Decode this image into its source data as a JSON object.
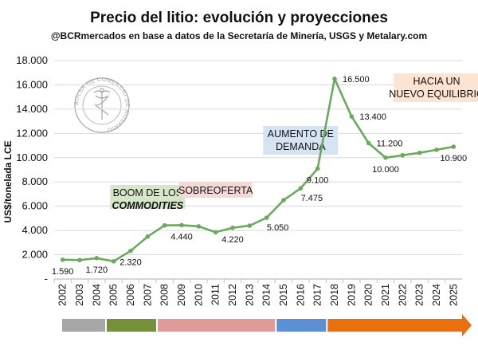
{
  "chart_data": {
    "type": "line",
    "title": "Precio del litio: evolución y proyecciones",
    "subtitle": "@BCRmercados en base a datos de la Secretaría de Minería, USGS y Metalary.com",
    "ylabel": "US$/tonelada LCE",
    "xlabel": "",
    "ylim": [
      0,
      18000
    ],
    "y_ticks": [
      "-",
      "2.000",
      "4.000",
      "6.000",
      "8.000",
      "10.000",
      "12.000",
      "14.000",
      "16.000",
      "18.000"
    ],
    "y_tick_values": [
      0,
      2000,
      4000,
      6000,
      8000,
      10000,
      12000,
      14000,
      16000,
      18000
    ],
    "grid": true,
    "x": [
      "2002",
      "2003",
      "2004",
      "2005",
      "2006",
      "2007",
      "2008",
      "2009",
      "2010",
      "2011",
      "2012",
      "2013",
      "2014",
      "2015",
      "2016",
      "2017",
      "2018",
      "2019",
      "2020",
      "2021",
      "2022",
      "2023",
      "2024",
      "2025"
    ],
    "series": [
      {
        "name": "Precio del litio",
        "color": "#6aaa5c",
        "values": [
          1590,
          1560,
          1720,
          1460,
          2320,
          3500,
          4420,
          4440,
          4340,
          3860,
          4220,
          4400,
          5050,
          6500,
          7475,
          9100,
          16500,
          13400,
          11200,
          10000,
          10200,
          10400,
          10650,
          10900
        ]
      }
    ],
    "data_labels": [
      {
        "index": 0,
        "text": "1.590",
        "pos": "below"
      },
      {
        "index": 2,
        "text": "1.720",
        "pos": "below"
      },
      {
        "index": 4,
        "text": "2.320",
        "pos": "below"
      },
      {
        "index": 7,
        "text": "4.440",
        "pos": "below"
      },
      {
        "index": 10,
        "text": "4.220",
        "pos": "below"
      },
      {
        "index": 12,
        "text": "5.050",
        "pos": "below-right"
      },
      {
        "index": 14,
        "text": "7.475",
        "pos": "below-right"
      },
      {
        "index": 15,
        "text": "9.100",
        "pos": "below"
      },
      {
        "index": 16,
        "text": "16.500",
        "pos": "right"
      },
      {
        "index": 17,
        "text": "13.400",
        "pos": "right"
      },
      {
        "index": 18,
        "text": "11.200",
        "pos": "right"
      },
      {
        "index": 19,
        "text": "10.000",
        "pos": "below"
      },
      {
        "index": 23,
        "text": "10.900",
        "pos": "below"
      }
    ],
    "annotations": [
      {
        "id": "boom",
        "lines": [
          "BOOM DE LOS",
          "COMMODITIES"
        ],
        "bg": "#d6e6c8",
        "anchor_year": "2007"
      },
      {
        "id": "sobreoferta",
        "lines": [
          "SOBREOFERTA"
        ],
        "bg": "#f4d9d6",
        "anchor_year": "2011"
      },
      {
        "id": "aumento",
        "lines": [
          "AUMENTO DE",
          "DEMANDA"
        ],
        "bg": "#d5e3f2",
        "anchor_year": "2016"
      },
      {
        "id": "equilibrio",
        "lines": [
          "HACIA UN",
          "NUEVO EQUILIBRIO"
        ],
        "bg": "#fde3d2",
        "anchor_year": "2024"
      }
    ],
    "period_bar": [
      {
        "from": "2002",
        "to": "2005",
        "color": "#a6a6a6"
      },
      {
        "from": "2005",
        "to": "2008",
        "color": "#74913a"
      },
      {
        "from": "2008",
        "to": "2015",
        "color": "#e09a9a"
      },
      {
        "from": "2015",
        "to": "2018",
        "color": "#5b8fd6"
      },
      {
        "from": "2018",
        "to": "2025",
        "color": "#e8700e",
        "arrow": true
      }
    ]
  },
  "watermark": {
    "text": "BOLSA DE COMERCIO DE ROSARIO",
    "color": "#8a8a8a"
  },
  "colors": {
    "grid": "#d9d9d9",
    "axis": "#bfbfbf"
  }
}
